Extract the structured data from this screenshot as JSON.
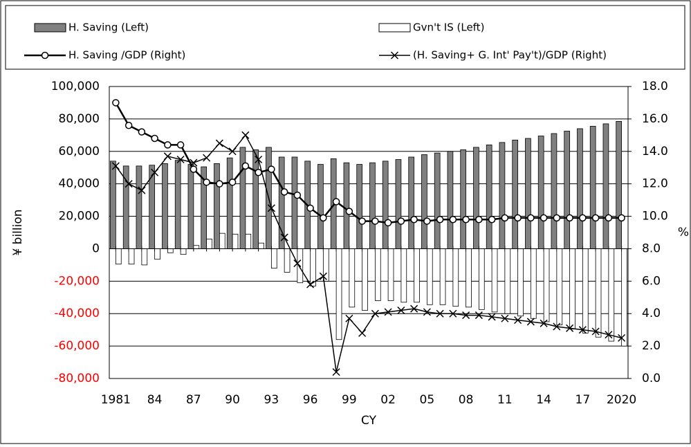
{
  "chart_data": {
    "type": "combo",
    "categories": [
      "1981",
      null,
      null,
      "84",
      null,
      null,
      "87",
      null,
      null,
      "90",
      null,
      null,
      "93",
      null,
      null,
      "96",
      null,
      null,
      "99",
      null,
      null,
      "02",
      null,
      null,
      "05",
      null,
      null,
      "08",
      null,
      null,
      "11",
      null,
      null,
      "14",
      null,
      null,
      "17",
      null,
      null,
      "2020"
    ],
    "series": [
      {
        "name": "H. Saving (Left)",
        "kind": "bar",
        "color": "#808080",
        "axis": "y",
        "values": [
          54000,
          51000,
          51000,
          51500,
          52500,
          54500,
          52000,
          50500,
          52500,
          56000,
          62500,
          61000,
          62500,
          56500,
          56500,
          54000,
          52000,
          55500,
          53000,
          52000,
          53000,
          54000,
          55000,
          56500,
          58000,
          59000,
          60000,
          61000,
          62500,
          64000,
          65500,
          67000,
          68000,
          69500,
          71000,
          72500,
          74000,
          75500,
          77000,
          78500
        ]
      },
      {
        "name": "Gvn't IS (Left)",
        "kind": "bar",
        "color": "#ffffff",
        "axis": "y",
        "values": [
          -9500,
          -9500,
          -10000,
          -6500,
          -2500,
          -3500,
          2000,
          6000,
          9500,
          9000,
          9000,
          3500,
          -12000,
          -14500,
          -21000,
          -23000,
          -20000,
          -56000,
          -36000,
          -38000,
          -32000,
          -32000,
          -33000,
          -33000,
          -34500,
          -34500,
          -35500,
          -36000,
          -37500,
          -39000,
          -40000,
          -41500,
          -43000,
          -45000,
          -47000,
          -49500,
          -52000,
          -54500,
          -57000,
          -60000
        ]
      },
      {
        "name": "H. Saving /GDP (Right)",
        "kind": "line",
        "marker": "circle",
        "color": "#000000",
        "axis": "y2",
        "values": [
          17.0,
          15.6,
          15.2,
          14.8,
          14.4,
          14.4,
          12.9,
          12.1,
          12.0,
          12.1,
          13.1,
          12.7,
          12.9,
          11.5,
          11.3,
          10.5,
          9.9,
          10.9,
          10.3,
          9.7,
          9.7,
          9.6,
          9.7,
          9.8,
          9.7,
          9.8,
          9.8,
          9.8,
          9.8,
          9.8,
          9.9,
          9.9,
          9.9,
          9.9,
          9.9,
          9.9,
          9.9,
          9.9,
          9.9,
          9.9
        ]
      },
      {
        "name": "(H. Saving+ G. Int' Pay't)/GDP (Right)",
        "kind": "line",
        "marker": "x",
        "color": "#000000",
        "axis": "y2",
        "values": [
          13.1,
          12.0,
          11.6,
          12.7,
          13.7,
          13.5,
          13.3,
          13.6,
          14.5,
          14.0,
          15.0,
          13.5,
          10.5,
          8.7,
          7.1,
          5.8,
          6.3,
          0.4,
          3.7,
          2.8,
          4.0,
          4.1,
          4.2,
          4.3,
          4.1,
          4.0,
          4.0,
          3.9,
          3.9,
          3.8,
          3.7,
          3.6,
          3.5,
          3.4,
          3.2,
          3.1,
          3.0,
          2.9,
          2.7,
          2.5
        ]
      }
    ],
    "ylim": [
      -80000,
      100000
    ],
    "yticks": [
      {
        "value": -80000,
        "label": "-80,000"
      },
      {
        "value": -60000,
        "label": "-60,000"
      },
      {
        "value": -40000,
        "label": "-40,000"
      },
      {
        "value": -20000,
        "label": "-20,000"
      },
      0,
      {
        "value": 20000,
        "label": "20,000"
      },
      {
        "value": 40000,
        "label": "40,000"
      },
      {
        "value": 60000,
        "label": "60,000"
      },
      {
        "value": 80000,
        "label": "80,000"
      },
      {
        "value": 100000,
        "label": "100,000"
      }
    ],
    "y2lim": [
      0,
      18
    ],
    "y2ticks": [
      {
        "value": 0,
        "label": "0.0"
      },
      {
        "value": 2,
        "label": "2.0"
      },
      {
        "value": 4,
        "label": "4.0"
      },
      {
        "value": 6,
        "label": "6.0"
      },
      {
        "value": 8,
        "label": "8.0"
      },
      {
        "value": 10,
        "label": "10.0"
      },
      {
        "value": 12,
        "label": "12.0"
      },
      {
        "value": 14,
        "label": "14.0"
      },
      {
        "value": 16,
        "label": "16.0"
      },
      {
        "value": 18,
        "label": "18.0"
      }
    ],
    "y_label": "¥ billion",
    "y2_label": "%",
    "x_label": "CY",
    "negative_tick_color": "#ff0000",
    "grid": true,
    "legend": "top"
  }
}
